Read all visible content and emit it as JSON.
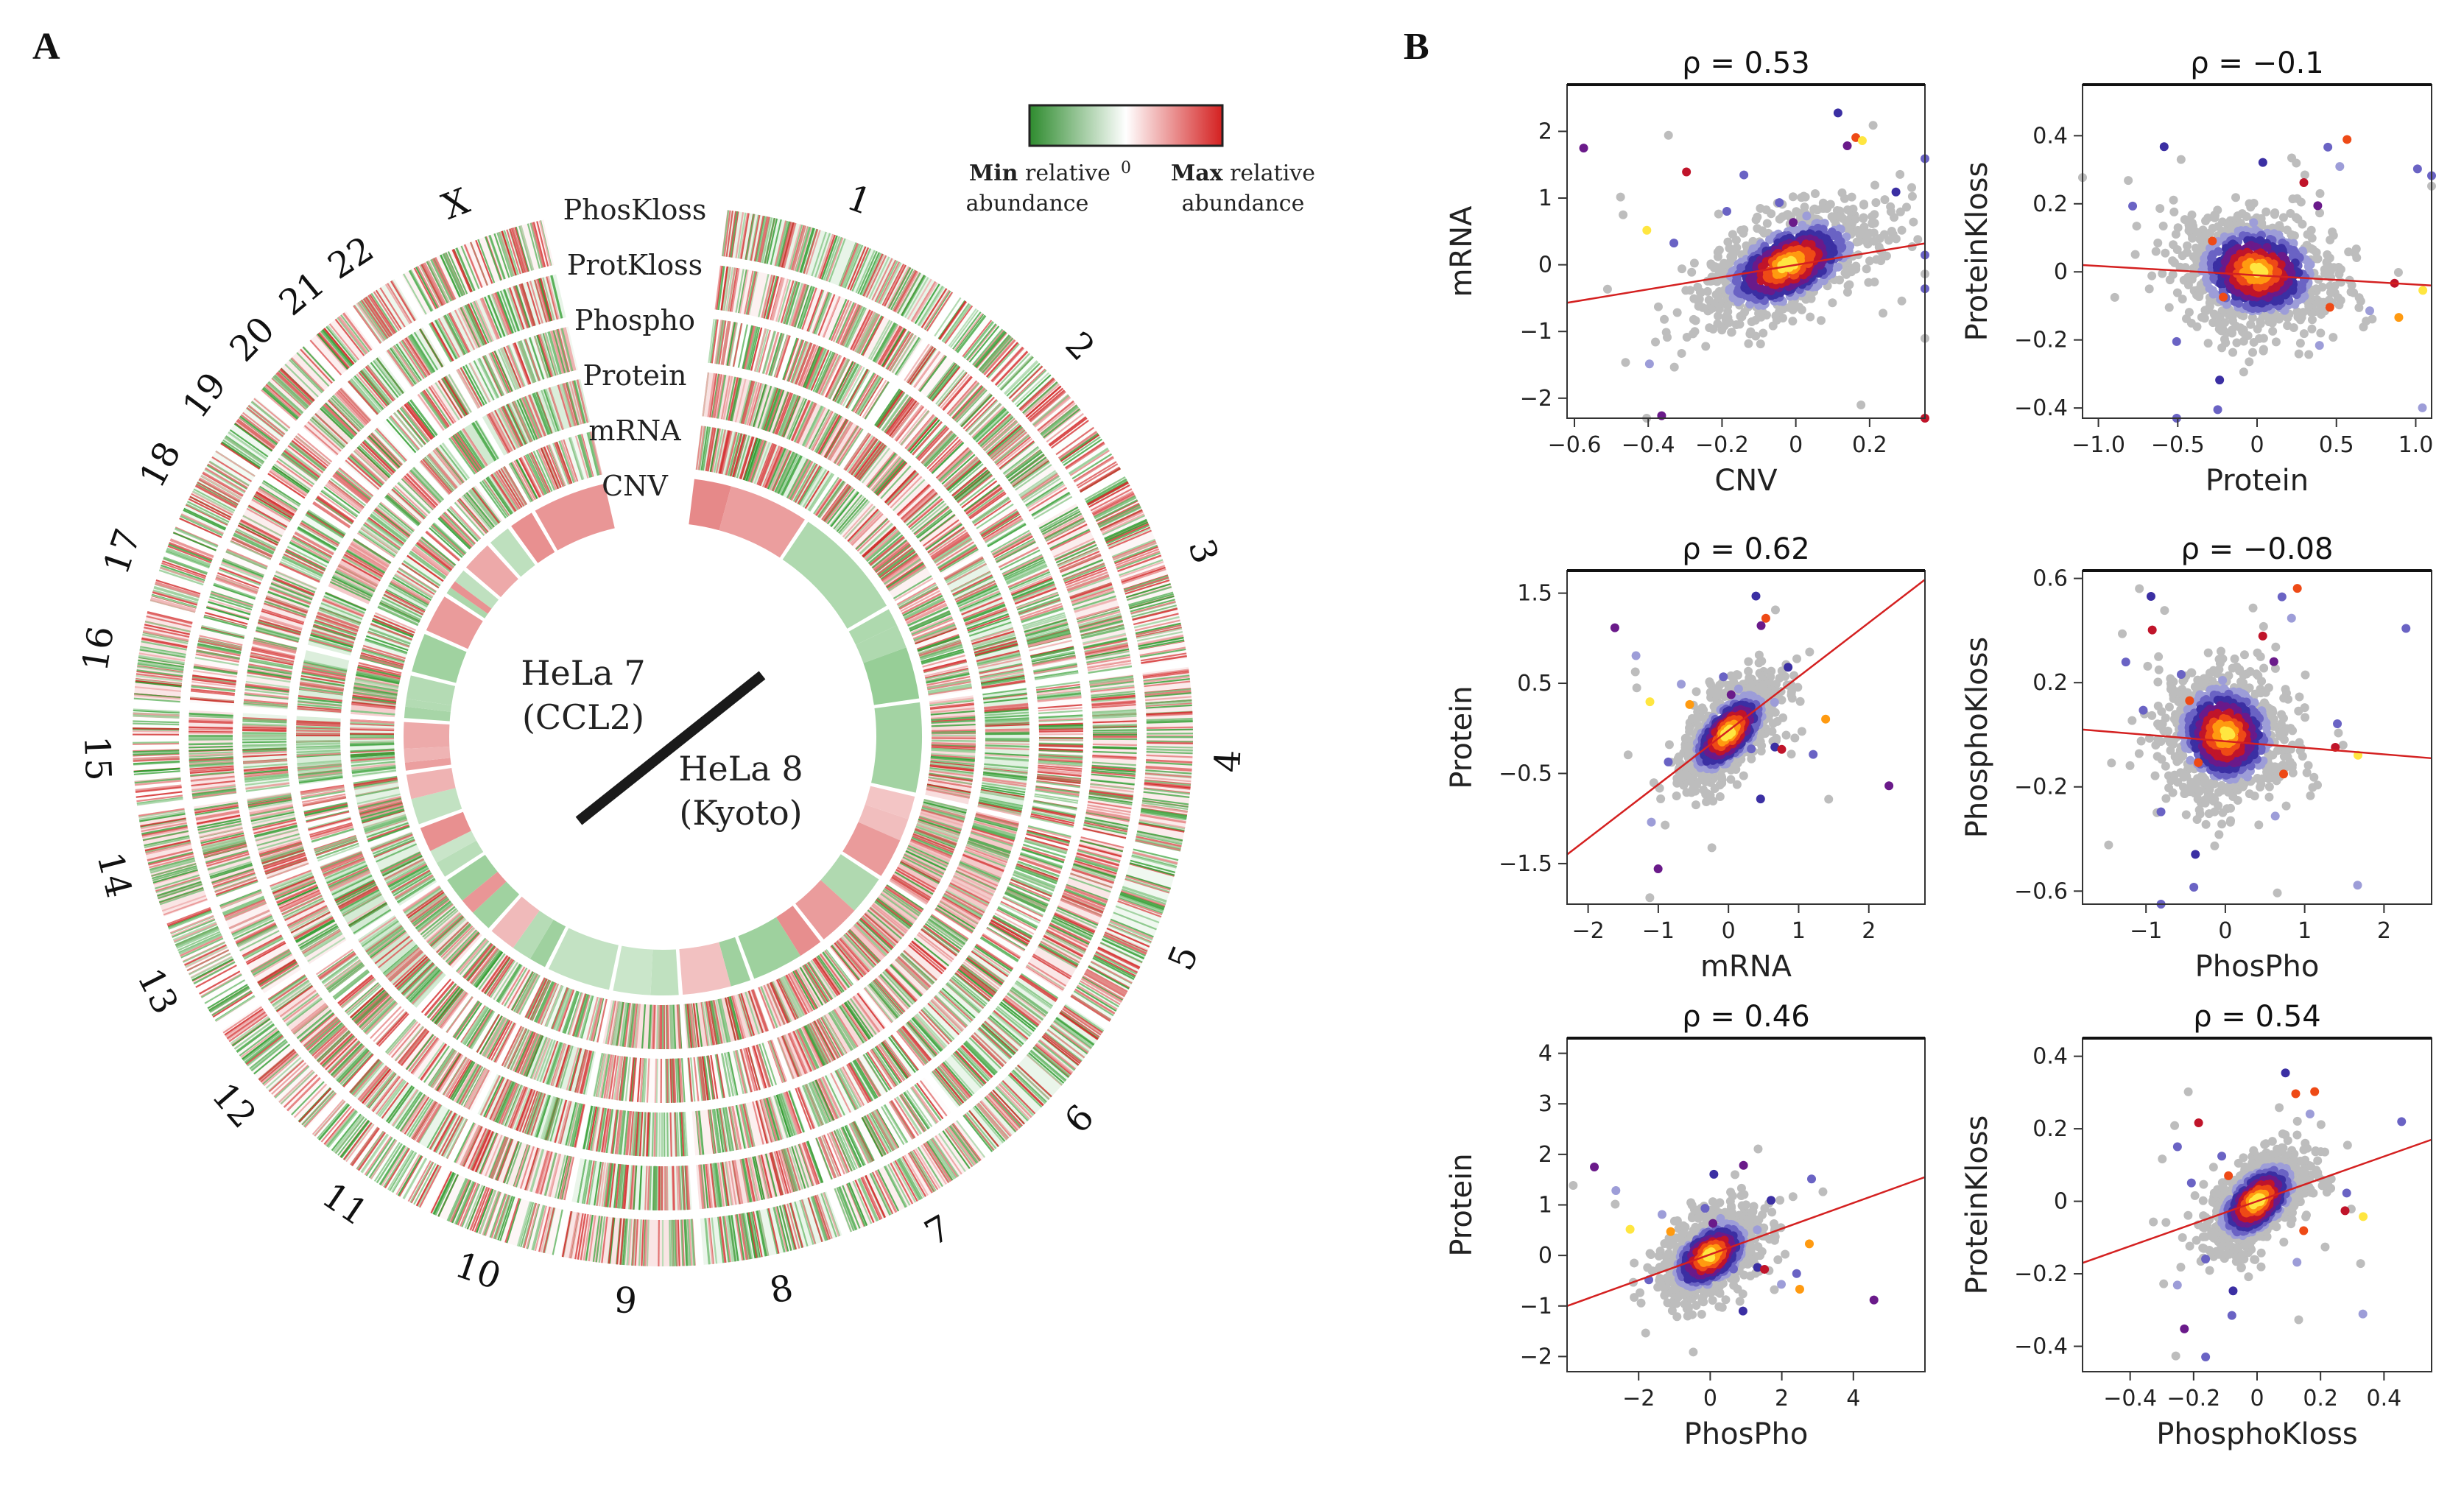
{
  "panels": {
    "a": "A",
    "b": "B"
  },
  "circos": {
    "track_labels": [
      "PhosKloss",
      "ProtKloss",
      "Phospho",
      "Protein",
      "mRNA",
      "CNV"
    ],
    "center_labels": {
      "s1_line1": "HeLa 7",
      "s1_line2": "(CCL2)",
      "s2_line1": "HeLa 8",
      "s2_line2": "(Kyoto)"
    },
    "chromosomes": [
      "1",
      "2",
      "3",
      "4",
      "5",
      "6",
      "7",
      "8",
      "9",
      "10",
      "11",
      "12",
      "13",
      "14",
      "15",
      "16",
      "17",
      "18",
      "19",
      "20",
      "21",
      "22",
      "X"
    ],
    "colorbar": {
      "min_bold": "Min",
      "min_rest": " relative",
      "min_line2": "abundance",
      "zero": "0",
      "max_bold": "Max",
      "max_rest": " relative",
      "max_line2": "abundance",
      "low_color": "#2e8b2e",
      "mid_color": "#ffffff",
      "high_color": "#d42020"
    }
  },
  "chart_data": [
    {
      "type": "scatter",
      "title": "ρ = 0.53",
      "xlabel": "CNV",
      "ylabel": "mRNA",
      "xlim": [
        -0.62,
        0.35
      ],
      "ylim": [
        -2.3,
        2.7
      ],
      "xticks": [
        -0.6,
        -0.4,
        -0.2,
        0,
        0.2
      ],
      "xtick_labels": [
        "−0.6",
        "−0.4",
        "−0.2",
        "0",
        "0.2"
      ],
      "yticks": [
        -2,
        -1,
        0,
        1,
        2
      ],
      "ytick_labels": [
        "−2",
        "−1",
        "0",
        "1",
        "2"
      ],
      "fit_line": [
        [
          -0.62,
          -0.57
        ],
        [
          0.35,
          0.32
        ]
      ],
      "center": [
        -0.02,
        0.0
      ],
      "spread": [
        0.12,
        0.45
      ],
      "rho": 0.53
    },
    {
      "type": "scatter",
      "title": "ρ = −0.1",
      "xlabel": "Protein",
      "ylabel": "ProteinKloss",
      "xlim": [
        -1.1,
        1.1
      ],
      "ylim": [
        -0.43,
        0.55
      ],
      "xticks": [
        -1.0,
        -0.5,
        0,
        0.5,
        1.0
      ],
      "xtick_labels": [
        "−1.0",
        "−0.5",
        "0",
        "0.5",
        "1.0"
      ],
      "yticks": [
        -0.4,
        -0.2,
        0,
        0.2,
        0.4
      ],
      "ytick_labels": [
        "−0.4",
        "−0.2",
        "0",
        "0.2",
        "0.4"
      ],
      "fit_line": [
        [
          -1.1,
          0.02
        ],
        [
          1.1,
          -0.04
        ]
      ],
      "center": [
        0.0,
        0.0
      ],
      "spread": [
        0.25,
        0.09
      ],
      "rho": -0.1
    },
    {
      "type": "scatter",
      "title": "ρ = 0.62",
      "xlabel": "mRNA",
      "ylabel": "Protein",
      "xlim": [
        -2.3,
        2.8
      ],
      "ylim": [
        -1.95,
        1.75
      ],
      "xticks": [
        -2,
        -1,
        0,
        1,
        2
      ],
      "xtick_labels": [
        "−2",
        "−1",
        "0",
        "1",
        "2"
      ],
      "yticks": [
        -1.5,
        -0.5,
        0.5,
        1.5
      ],
      "ytick_labels": [
        "−1.5",
        "−0.5",
        "0.5",
        "1.5"
      ],
      "fit_line": [
        [
          -2.3,
          -1.4
        ],
        [
          2.8,
          1.65
        ]
      ],
      "center": [
        0.0,
        -0.05
      ],
      "spread": [
        0.35,
        0.3
      ],
      "rho": 0.62
    },
    {
      "type": "scatter",
      "title": "ρ = −0.08",
      "xlabel": "PhosPho",
      "ylabel": "PhosphoKloss",
      "xlim": [
        -1.8,
        2.6
      ],
      "ylim": [
        -0.65,
        0.63
      ],
      "xticks": [
        -1,
        0,
        1,
        2
      ],
      "xtick_labels": [
        "−1",
        "0",
        "1",
        "2"
      ],
      "yticks": [
        -0.6,
        -0.2,
        0.2,
        0.6
      ],
      "ytick_labels": [
        "−0.6",
        "−0.2",
        "0.2",
        "0.6"
      ],
      "fit_line": [
        [
          -1.8,
          0.02
        ],
        [
          2.6,
          -0.09
        ]
      ],
      "center": [
        0.0,
        0.0
      ],
      "spread": [
        0.4,
        0.13
      ],
      "rho": -0.08
    },
    {
      "type": "scatter",
      "title": "ρ = 0.46",
      "xlabel": "PhosPho",
      "ylabel": "Protein",
      "xlim": [
        -4.0,
        6.0
      ],
      "ylim": [
        -2.3,
        4.3
      ],
      "xticks": [
        -2,
        0,
        2,
        4
      ],
      "xtick_labels": [
        "−2",
        "0",
        "2",
        "4"
      ],
      "yticks": [
        -2,
        -1,
        0,
        1,
        2,
        3,
        4
      ],
      "ytick_labels": [
        "−2",
        "−1",
        "0",
        "1",
        "2",
        "3",
        "4"
      ],
      "fit_line": [
        [
          -4.0,
          -1.0
        ],
        [
          6.0,
          1.55
        ]
      ],
      "center": [
        0.0,
        0.0
      ],
      "spread": [
        0.7,
        0.45
      ],
      "rho": 0.46
    },
    {
      "type": "scatter",
      "title": "ρ = 0.54",
      "xlabel": "PhosphoKloss",
      "ylabel": "ProteinKloss",
      "xlim": [
        -0.55,
        0.55
      ],
      "ylim": [
        -0.47,
        0.45
      ],
      "xticks": [
        -0.4,
        -0.2,
        0,
        0.2,
        0.4
      ],
      "xtick_labels": [
        "−0.4",
        "−0.2",
        "0",
        "0.2",
        "0.4"
      ],
      "yticks": [
        -0.4,
        -0.2,
        0,
        0.2,
        0.4
      ],
      "ytick_labels": [
        "−0.4",
        "−0.2",
        "0",
        "0.2",
        "0.4"
      ],
      "fit_line": [
        [
          -0.55,
          -0.17
        ],
        [
          0.55,
          0.17
        ]
      ],
      "center": [
        0.0,
        0.0
      ],
      "spread": [
        0.08,
        0.07
      ],
      "rho": 0.54
    }
  ]
}
